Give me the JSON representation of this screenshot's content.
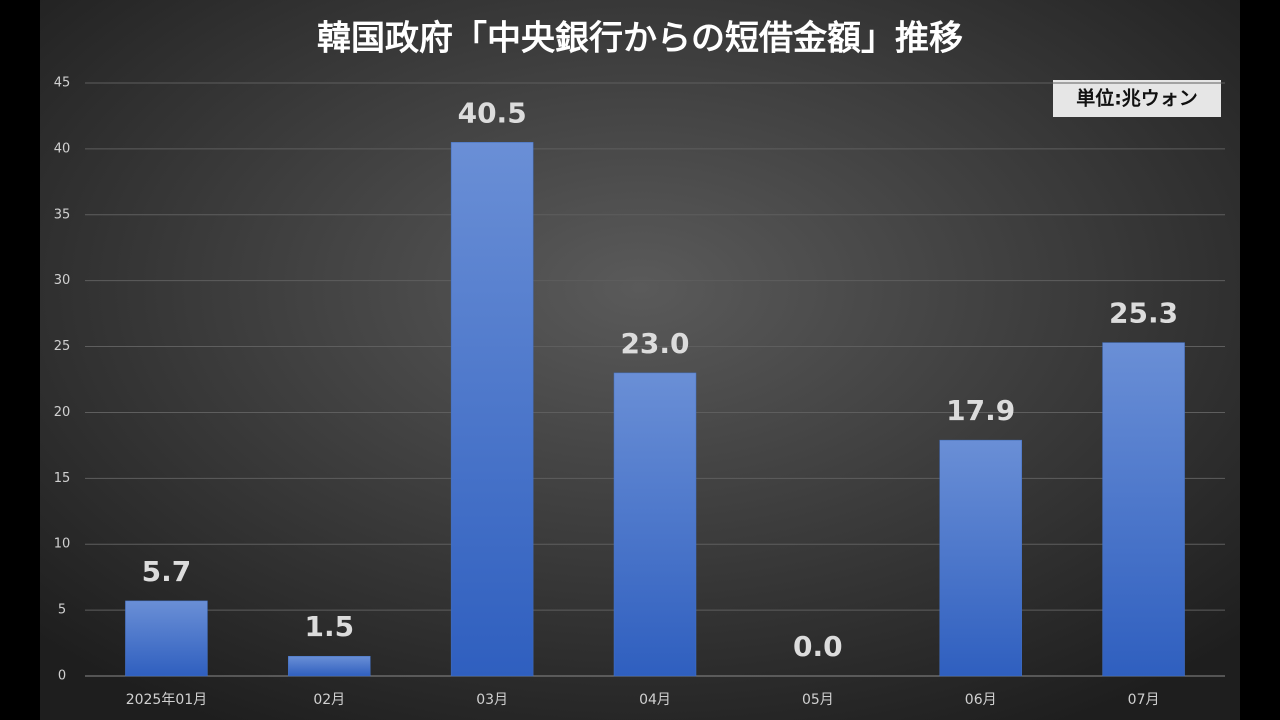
{
  "chart_data": {
    "type": "bar",
    "title": "韓国政府「中央銀行からの短借金額」推移",
    "unit_note": "単位:兆ウォン",
    "categories": [
      "2025年01月",
      "02月",
      "03月",
      "04月",
      "05月",
      "06月",
      "07月"
    ],
    "values": [
      5.7,
      1.5,
      40.5,
      23.0,
      0.0,
      17.9,
      25.3
    ],
    "value_labels": [
      "5.7",
      "1.5",
      "40.5",
      "23.0",
      "0.0",
      "17.9",
      "25.3"
    ],
    "color": "#4472c4",
    "ylim": [
      0,
      45
    ],
    "yticks": [
      0,
      5,
      10,
      15,
      20,
      25,
      30,
      35,
      40,
      45
    ],
    "grid": true
  }
}
